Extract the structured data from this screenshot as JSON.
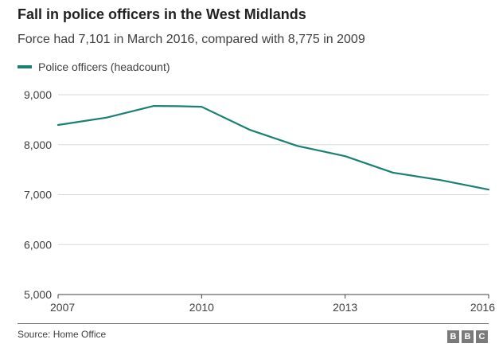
{
  "colors": {
    "line": "#1a8073",
    "grid": "#d9d9d9",
    "axis": "#404040"
  },
  "chart_data": {
    "type": "line",
    "title": "Fall in police officers in the West Midlands",
    "subtitle": "Force had 7,101 in March 2016, compared with 8,775 in 2009",
    "xlabel": "",
    "ylabel": "",
    "xlim": [
      2007,
      2016
    ],
    "ylim": [
      5000,
      9000
    ],
    "x_ticks": [
      2007,
      2010,
      2013,
      2016
    ],
    "x_tick_labels": [
      "2007",
      "2010",
      "2013",
      "2016"
    ],
    "y_ticks": [
      5000,
      6000,
      7000,
      8000,
      9000
    ],
    "y_tick_labels": [
      "5,000",
      "6,000",
      "7,000",
      "8,000",
      "9,000"
    ],
    "grid": true,
    "legend_position": "top-left",
    "series": [
      {
        "name": "Police officers (headcount)",
        "x": [
          2007,
          2008,
          2009,
          2009.5,
          2010,
          2011,
          2012,
          2013,
          2014,
          2015,
          2016
        ],
        "values": [
          8395,
          8540,
          8775,
          8770,
          8760,
          8300,
          7975,
          7770,
          7440,
          7290,
          7101
        ]
      }
    ]
  },
  "footer": {
    "source": "Source: Home Office",
    "logo_letters": [
      "B",
      "B",
      "C"
    ]
  }
}
